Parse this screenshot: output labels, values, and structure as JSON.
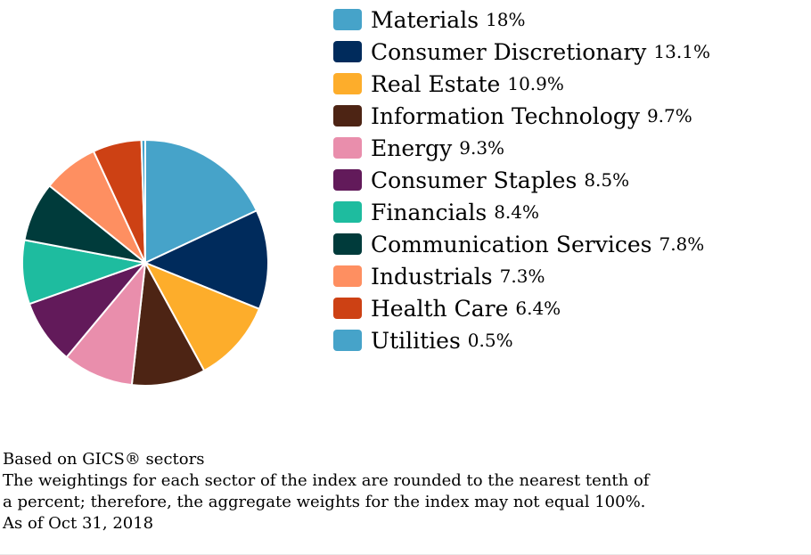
{
  "chart_data": {
    "type": "pie",
    "categories": [
      "Materials",
      "Consumer Discretionary",
      "Real Estate",
      "Information Technology",
      "Energy",
      "Consumer Staples",
      "Financials",
      "Communication Services",
      "Industrials",
      "Health Care",
      "Utilities"
    ],
    "values": [
      18,
      13.1,
      10.9,
      9.7,
      9.3,
      8.5,
      8.4,
      7.8,
      7.3,
      6.4,
      0.5
    ],
    "value_labels": [
      "18%",
      "13.1%",
      "10.9%",
      "9.7%",
      "9.3%",
      "8.5%",
      "8.4%",
      "7.8%",
      "7.3%",
      "6.4%",
      "0.5%"
    ],
    "colors": [
      "#46a3c9",
      "#002b5c",
      "#fdad2b",
      "#4d2414",
      "#e98eac",
      "#621a5a",
      "#1ebc9f",
      "#003b3b",
      "#fe8f61",
      "#cd4114",
      "#46a3c9"
    ],
    "legend_position": "right",
    "start_angle": "12 o'clock",
    "direction": "clockwise",
    "slice_border_color": "#ffffff"
  },
  "notes": [
    "Based on GICS® sectors",
    "The weightings for each sector of the index are rounded to the nearest tenth of",
    "a percent; therefore, the aggregate weights for the index may not equal 100%.",
    "As of Oct 31, 2018"
  ]
}
